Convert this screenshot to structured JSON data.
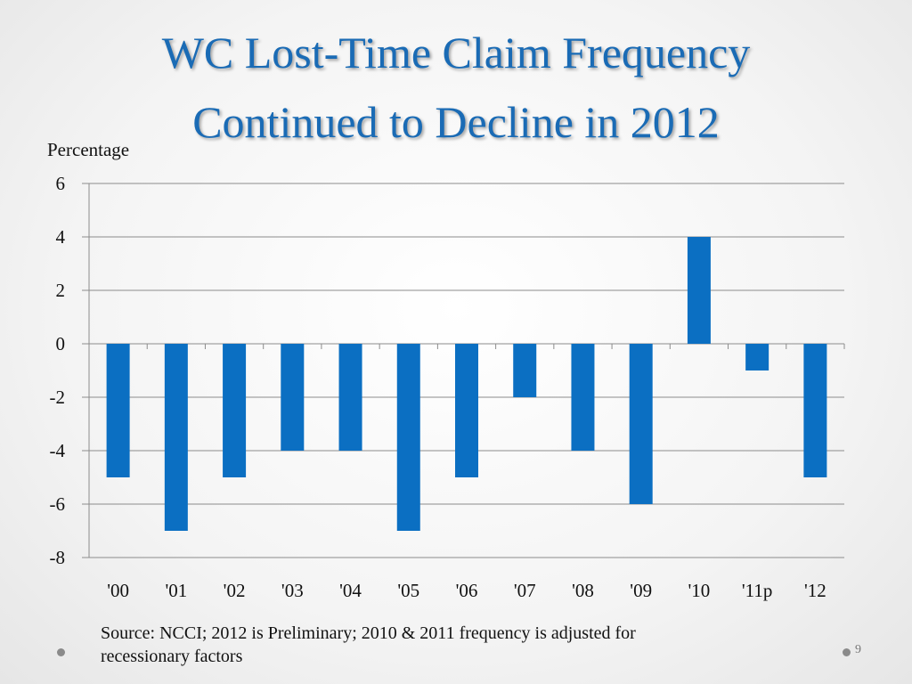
{
  "slide": {
    "title_line1": "WC Lost-Time Claim Frequency",
    "title_line2": "Continued to Decline in 2012",
    "source_line1": "Source:  NCCI; 2012 is Preliminary; 2010 & 2011 frequency is adjusted for",
    "source_line2": "recessionary factors",
    "page_number": "9"
  },
  "colors": {
    "title": "#1a6bb5",
    "bar": "#0b6fc2"
  },
  "chart_data": {
    "type": "bar",
    "title": "",
    "ylabel": "Percentage",
    "xlabel": "",
    "categories": [
      "'00",
      "'01",
      "'02",
      "'03",
      "'04",
      "'05",
      "'06",
      "'07",
      "'08",
      "'09",
      "'10",
      "'11p",
      "'12"
    ],
    "values": [
      -5,
      -7,
      -5,
      -4,
      -4,
      -7,
      -5,
      -2,
      -4,
      -6,
      4,
      -1,
      -5
    ],
    "ylim": [
      -8,
      6
    ],
    "yticks": [
      6,
      4,
      2,
      0,
      -2,
      -4,
      -6,
      -8
    ],
    "grid": true,
    "legend": "none"
  }
}
